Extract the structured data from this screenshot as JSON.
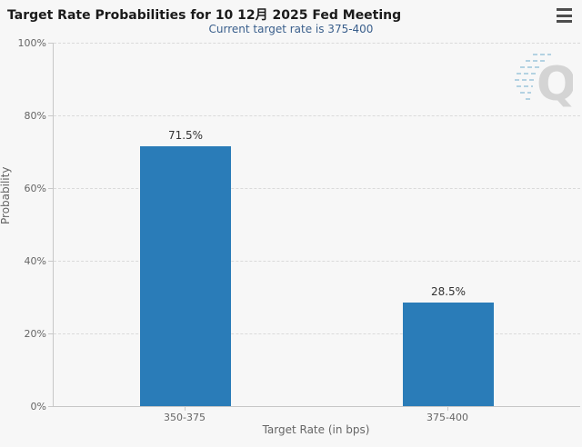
{
  "header": {
    "title": "Target Rate Probabilities for 10 12月 2025 Fed Meeting",
    "subtitle": "Current target rate is 375-400"
  },
  "icons": {
    "menu": "hamburger-menu-icon",
    "watermark": "quikstrike-q-watermark",
    "watermark_letter": "Q"
  },
  "colors": {
    "background": "#f7f7f7",
    "bar": "#2a7cb8",
    "subtitle_text": "#3a5f8c",
    "title_text": "#1b1b1b",
    "axis_text": "#666666",
    "data_label_text": "#333333",
    "gridline": "#dadada",
    "axis_line": "#c8c8c8"
  },
  "chart_data": {
    "type": "bar",
    "title": "Target Rate Probabilities for 10 12月 2025 Fed Meeting",
    "subtitle": "Current target rate is 375-400",
    "categories": [
      "350-375",
      "375-400"
    ],
    "values": [
      71.5,
      28.5
    ],
    "value_labels": [
      "71.5%",
      "28.5%"
    ],
    "xlabel": "Target Rate (in bps)",
    "ylabel": "Probability",
    "ylim": [
      0,
      100
    ],
    "yticks": [
      0,
      20,
      40,
      60,
      80,
      100
    ],
    "ytick_labels": [
      "0%",
      "20%",
      "40%",
      "60%",
      "80%",
      "100%"
    ],
    "grid": "horizontal-dashed",
    "legend": "none"
  }
}
